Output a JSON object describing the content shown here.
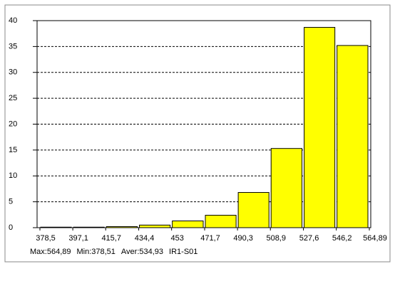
{
  "chart_data": {
    "type": "histogram",
    "bins": [
      378.5,
      397.1,
      415.7,
      434.4,
      453,
      471.7,
      490.3,
      508.9,
      527.6,
      546.2,
      564.89
    ],
    "values": [
      0.1,
      0.1,
      0.2,
      0.5,
      1.3,
      2.4,
      6.8,
      15.3,
      38.7,
      35.2
    ],
    "color": "#ffff00",
    "xlim": [
      378.5,
      564.89
    ],
    "xticks": [
      {
        "value": 378.5,
        "label": "378,5"
      },
      {
        "value": 397.1,
        "label": "397,1"
      },
      {
        "value": 415.7,
        "label": "415,7"
      },
      {
        "value": 434.4,
        "label": "434,4"
      },
      453,
      {
        "value": 471.7,
        "label": "471,7"
      },
      {
        "value": 490.3,
        "label": "490,3"
      },
      {
        "value": 508.9,
        "label": "508,9"
      },
      {
        "value": 527.6,
        "label": "527,6"
      },
      {
        "value": 546.2,
        "label": "546,2"
      },
      {
        "value": 564.89,
        "label": "564,89"
      }
    ],
    "ylim": [
      0,
      40
    ],
    "yticks": [
      0,
      5,
      10,
      15,
      20,
      25,
      30,
      35,
      40
    ],
    "grid": true,
    "annotations": [
      "Max:564,89",
      "Min:378,51",
      "Aver:534,93",
      "IR1-S01"
    ]
  }
}
